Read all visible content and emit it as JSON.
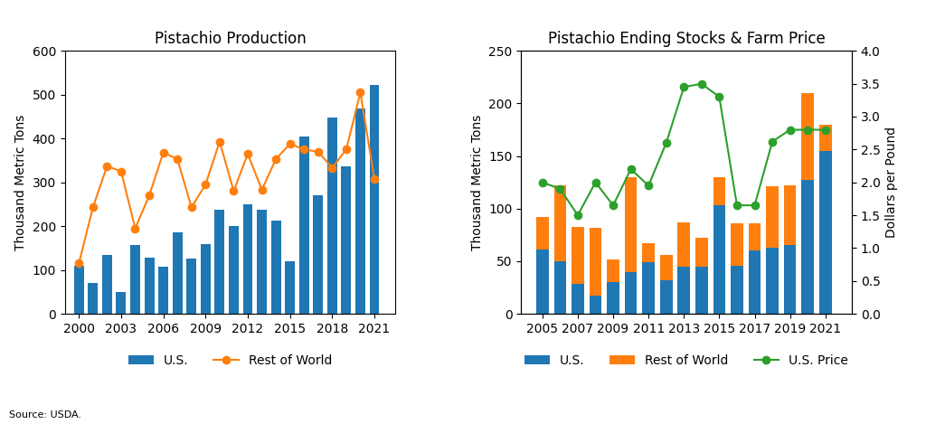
{
  "chart_data": [
    {
      "type": "bar",
      "title": "Pistachio Production",
      "ylabel": "Thousand Metric Tons",
      "x": [
        2000,
        2001,
        2002,
        2003,
        2004,
        2005,
        2006,
        2007,
        2008,
        2009,
        2010,
        2011,
        2012,
        2013,
        2014,
        2015,
        2016,
        2017,
        2018,
        2019,
        2020,
        2021
      ],
      "series": [
        {
          "name": "U.S.",
          "type": "bar",
          "values": [
            110,
            70,
            135,
            50,
            157,
            128,
            107,
            185,
            126,
            160,
            238,
            200,
            250,
            238,
            213,
            120,
            405,
            270,
            448,
            337,
            468,
            523
          ]
        },
        {
          "name": "Rest of World",
          "type": "line",
          "marker": "o",
          "values": [
            115,
            243,
            337,
            325,
            195,
            270,
            368,
            353,
            243,
            295,
            393,
            280,
            365,
            283,
            353,
            388,
            375,
            370,
            333,
            375,
            505,
            307
          ]
        }
      ],
      "xlim": [
        1999,
        2022.5
      ],
      "xticks": [
        2000,
        2003,
        2006,
        2009,
        2012,
        2015,
        2018,
        2021
      ],
      "ylim": [
        0,
        600
      ],
      "yticks": [
        0,
        100,
        200,
        300,
        400,
        500,
        600
      ],
      "legend": "upper center",
      "annotations": [
        "Source: USDA."
      ]
    },
    {
      "type": "bar",
      "title": "Pistachio Ending Stocks & Farm Price",
      "ylabel": "Thousand Metric Tons",
      "y2label": "Dollars per Pound",
      "stacked": true,
      "x": [
        2005,
        2006,
        2007,
        2008,
        2009,
        2010,
        2011,
        2012,
        2013,
        2014,
        2015,
        2016,
        2017,
        2018,
        2019,
        2020,
        2021
      ],
      "series": [
        {
          "name": "U.S.",
          "type": "bar",
          "values": [
            61,
            50,
            28,
            17,
            30,
            40,
            49,
            32,
            45,
            45,
            103,
            46,
            60,
            63,
            65,
            127,
            155
          ]
        },
        {
          "name": "Rest of World",
          "type": "bar",
          "values": [
            31,
            72,
            55,
            65,
            22,
            90,
            18,
            24,
            42,
            27,
            27,
            40,
            26,
            58,
            57,
            83,
            25
          ]
        },
        {
          "name": "U.S. Price",
          "type": "line",
          "marker": "o",
          "axis": "y2",
          "values": [
            2.0,
            1.9,
            1.5,
            2.0,
            1.65,
            2.2,
            1.95,
            2.6,
            3.45,
            3.5,
            3.3,
            1.65,
            1.65,
            2.62,
            2.8,
            2.8,
            2.8
          ]
        }
      ],
      "xlim": [
        2003.8,
        2022.5
      ],
      "xticks": [
        2005,
        2007,
        2009,
        2011,
        2013,
        2015,
        2017,
        2019,
        2021
      ],
      "ylim": [
        0,
        250
      ],
      "yticks": [
        0,
        50,
        100,
        150,
        200,
        250
      ],
      "y2lim": [
        0.0,
        4.0
      ],
      "y2ticks": [
        0.0,
        0.5,
        1.0,
        1.5,
        2.0,
        2.5,
        3.0,
        3.5,
        4.0
      ],
      "legend": "upper center"
    }
  ]
}
